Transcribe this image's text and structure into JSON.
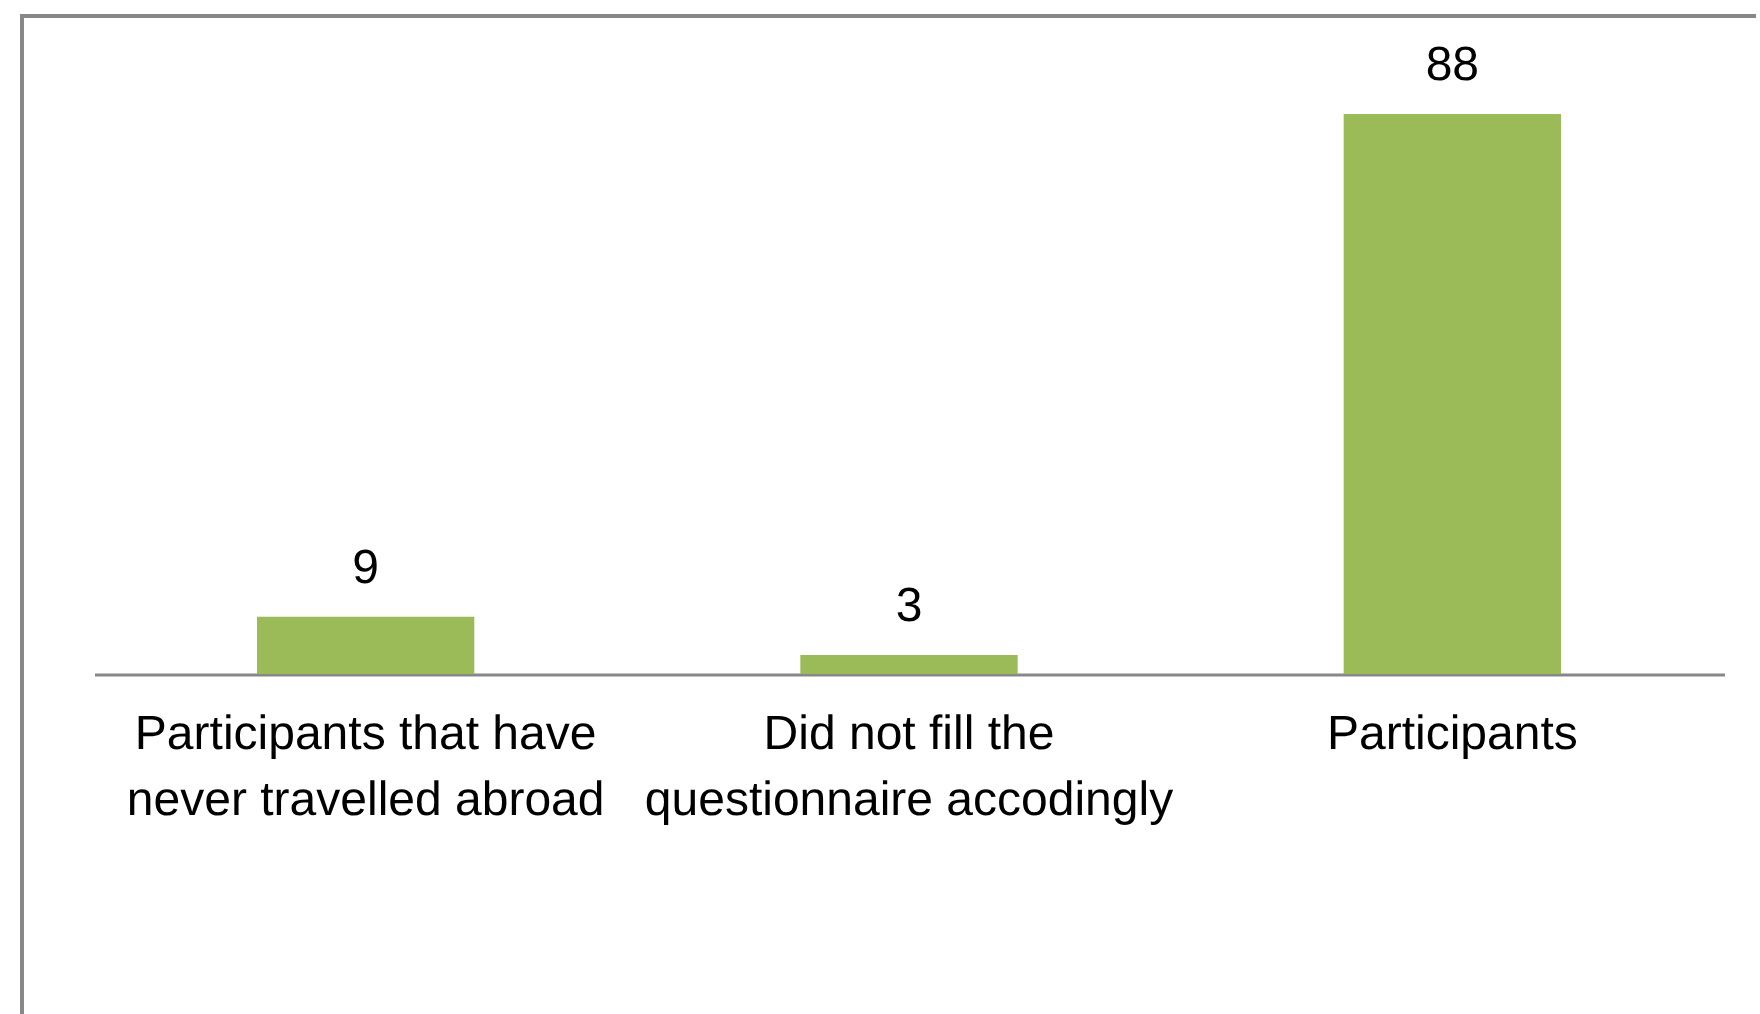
{
  "chart_data": {
    "type": "bar",
    "categories": [
      "Participants that have never travelled abroad",
      "Did not fill the questionnaire accodingly",
      "Participants"
    ],
    "values": [
      9,
      3,
      88
    ],
    "color": "#9bbb59",
    "data_labels": true
  }
}
